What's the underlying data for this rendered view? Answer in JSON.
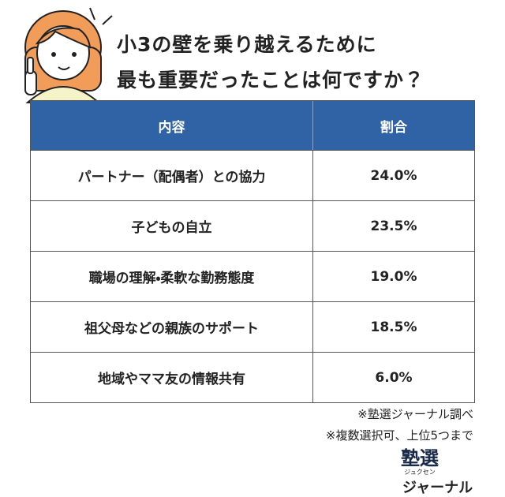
{
  "header": {
    "title_lines": [
      "小3の壁を乗り越えるために",
      "最も重要だったことは何ですか？"
    ]
  },
  "table": {
    "columns": [
      "内容",
      "割合"
    ],
    "rows": [
      [
        "パートナー（配偶者）との協力",
        "24.0%"
      ],
      [
        "子どもの自立",
        "23.5%"
      ],
      [
        "職場の理解・柔軟な勤務態度",
        "19.0%"
      ],
      [
        "祖父母などの親族のサポート",
        "18.5%"
      ],
      [
        "地域やママ友の情報共有",
        "6.0%"
      ]
    ]
  },
  "notes": [
    "※塾選ジャーナル調べ",
    "※複数選択可、上位5つまで"
  ],
  "logo": {
    "main": "塾選",
    "reading": "ジュクセン",
    "sub": "ジャーナル"
  }
}
